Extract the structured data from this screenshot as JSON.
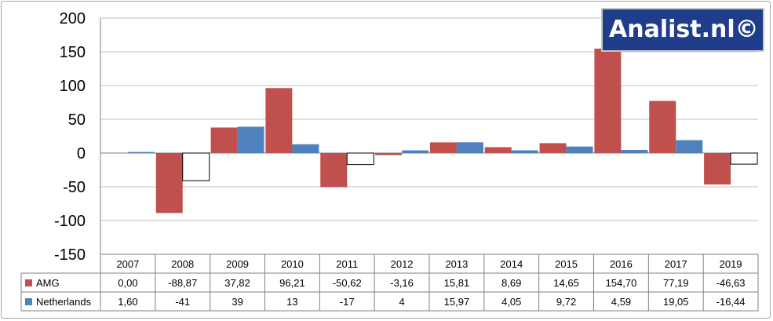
{
  "chart_data": {
    "type": "bar",
    "categories": [
      "2007",
      "2008",
      "2009",
      "2010",
      "2011",
      "2012",
      "2013",
      "2014",
      "2015",
      "2016",
      "2017",
      "2019"
    ],
    "series": [
      {
        "name": "AMG",
        "color": "#c0504d",
        "values": [
          0.0,
          -88.87,
          37.82,
          96.21,
          -50.62,
          -3.16,
          15.81,
          8.69,
          14.65,
          154.7,
          77.19,
          -46.63
        ],
        "labels": [
          "0,00",
          "-88,87",
          "37,82",
          "96,21",
          "-50,62",
          "-3,16",
          "15,81",
          "8,69",
          "14,65",
          "154,70",
          "77,19",
          "-46,63"
        ]
      },
      {
        "name": "Netherlands",
        "color": "#4f81bd",
        "values": [
          1.6,
          -41,
          39,
          13,
          -17,
          4,
          15.97,
          4.05,
          9.72,
          4.59,
          19.05,
          -16.44
        ],
        "labels": [
          "1,60",
          "-41",
          "39",
          "13",
          "-17",
          "4",
          "15,97",
          "4,05",
          "9,72",
          "4,59",
          "19,05",
          "-16,44"
        ]
      }
    ],
    "ylim": [
      -150,
      200
    ],
    "yticks": [
      200,
      150,
      100,
      50,
      0,
      -50,
      -100,
      -150
    ],
    "yticklabels": [
      "200",
      "150",
      "100",
      "50",
      "0",
      "-50",
      "-100",
      "-150"
    ],
    "grid": true,
    "legend": "data-table",
    "note": "Netherlands negative values drawn as unfilled bars"
  },
  "watermark": "Analist.nl©"
}
